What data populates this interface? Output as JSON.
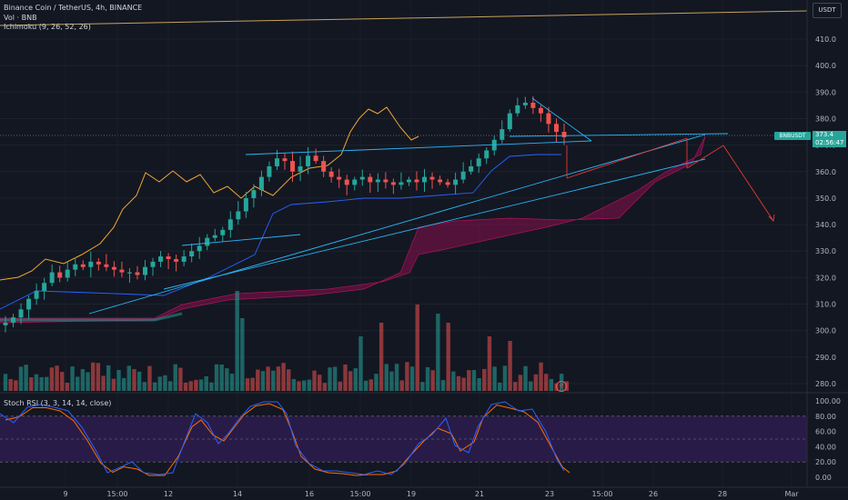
{
  "header": {
    "symbol_line": "Binance Coin / TetherUS, 4h, BINANCE",
    "volume_line": "Vol · BNB",
    "ichimoku_line": "Ichimoku (9, 26, 52, 26)",
    "currency_button": "USDT"
  },
  "price_axis": {
    "ticks": [
      "410.0",
      "400.0",
      "390.0",
      "380.0",
      "370.0",
      "360.0",
      "350.0",
      "340.0",
      "330.0",
      "320.0",
      "310.0",
      "300.0",
      "290.0",
      "280.0"
    ]
  },
  "price_tag": {
    "symbol": "BNBUSDT",
    "price": "373.4",
    "countdown": "02:56:47"
  },
  "stoch": {
    "title": "Stoch RSI (3, 3, 14, 14, close)",
    "ticks": [
      "100.00",
      "80.00",
      "60.00",
      "40.00",
      "20.00",
      "0.00"
    ]
  },
  "time_axis": {
    "labels": [
      "9",
      "15:00",
      "12",
      "14",
      "16",
      "15:00",
      "19",
      "21",
      "23",
      "15:00",
      "26",
      "28",
      "Mar"
    ]
  },
  "colors": {
    "background": "#131722",
    "up": "#26a69a",
    "down": "#ef5350",
    "cloud": "#880e4f",
    "chikou": "#f0a830",
    "trendline": "#29b6f6",
    "stoch_k": "#2962ff",
    "stoch_d": "#ff6d00",
    "stoch_band": "#3c1f66"
  },
  "chart_data": {
    "type": "candlestick",
    "interval": "4h",
    "ylim": [
      278,
      415
    ],
    "stoch_ylim": [
      0,
      100
    ],
    "close_path": [
      303,
      305,
      308,
      312,
      315,
      318,
      322,
      320,
      323,
      325,
      324,
      326,
      325,
      324,
      323,
      322,
      322,
      321,
      324,
      326,
      328,
      327,
      326,
      328,
      330,
      332,
      335,
      336,
      338,
      342,
      345,
      350,
      353,
      358,
      362,
      365,
      364,
      360,
      362,
      366,
      364,
      360,
      358,
      357,
      355,
      357,
      358,
      356,
      357,
      356,
      355,
      356,
      357,
      356,
      358,
      357,
      356,
      355,
      357,
      360,
      362,
      365,
      368,
      372,
      376,
      382,
      385,
      386,
      384,
      382,
      378,
      375,
      373
    ]
  }
}
